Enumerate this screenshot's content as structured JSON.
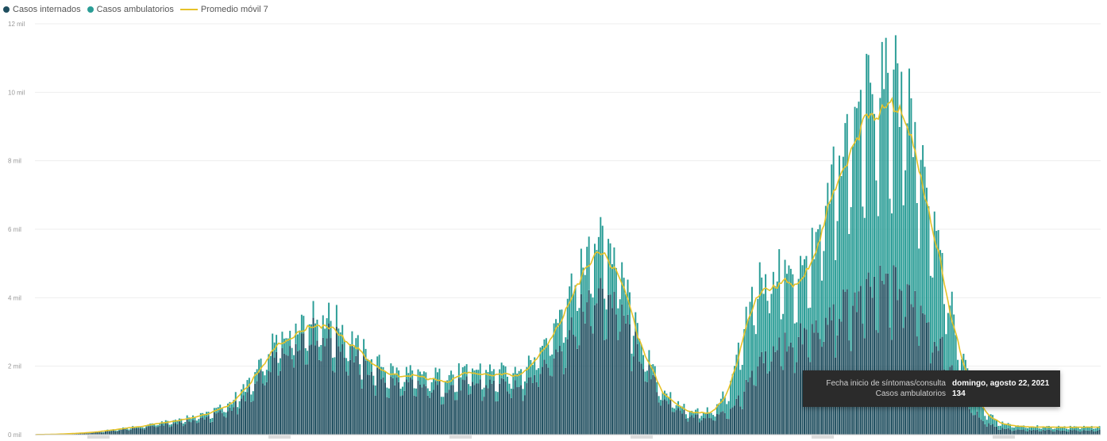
{
  "legend": {
    "items": [
      {
        "label": "Casos internados",
        "color": "#1f4e5f",
        "kind": "dot"
      },
      {
        "label": "Casos ambulatorios",
        "color": "#2a9d96",
        "kind": "dot"
      },
      {
        "label": "Promedio móvil 7",
        "color": "#e6c229",
        "kind": "line"
      }
    ]
  },
  "tooltip": {
    "row1_label": "Fecha inicio de síntomas/consulta",
    "row1_value": "domingo, agosto 22, 2021",
    "row2_label": "Casos ambulatorios",
    "row2_value": "134"
  },
  "chart_data": {
    "type": "bar",
    "stacked": true,
    "ylim": [
      0,
      12000
    ],
    "yticks": [
      0,
      2000,
      4000,
      6000,
      8000,
      10000,
      12000
    ],
    "ytick_labels": [
      "0 mil",
      "2 mil",
      "4 mil",
      "6 mil",
      "8 mil",
      "10 mil",
      "12 mil"
    ],
    "grid": true,
    "legend_position": "top-left",
    "x_start": "2020-03-01",
    "x_end": "2021-08-31",
    "x_ticks_shown": 6,
    "series": [
      {
        "name": "Casos internados",
        "color": "#1f4e5f",
        "weekly": [
          2,
          6,
          15,
          30,
          55,
          90,
          130,
          175,
          220,
          280,
          330,
          390,
          460,
          560,
          700,
          950,
          1350,
          1900,
          2400,
          2800,
          3000,
          3000,
          2800,
          2500,
          2100,
          1800,
          1600,
          1500,
          1450,
          1400,
          1400,
          1450,
          1500,
          1500,
          1450,
          1450,
          1600,
          1900,
          2300,
          2900,
          3500,
          4000,
          4200,
          3700,
          2800,
          1900,
          1200,
          800,
          600,
          520,
          550,
          700,
          1200,
          1900,
          2400,
          2700,
          2800,
          3000,
          3300,
          3600,
          3900,
          4100,
          4300,
          4400,
          4300,
          4000,
          3200,
          2200,
          1300,
          700,
          350,
          200,
          150,
          130
        ]
      },
      {
        "name": "Casos ambulatorios",
        "color": "#2a9d96",
        "weekly": [
          0,
          2,
          5,
          10,
          15,
          25,
          35,
          45,
          55,
          70,
          80,
          100,
          120,
          140,
          180,
          250,
          350,
          450,
          500,
          550,
          600,
          600,
          550,
          500,
          420,
          360,
          330,
          320,
          330,
          340,
          350,
          360,
          380,
          400,
          400,
          420,
          500,
          650,
          850,
          1100,
          1400,
          1600,
          1500,
          1100,
          700,
          400,
          250,
          180,
          160,
          150,
          200,
          700,
          1600,
          2300,
          2500,
          2200,
          2000,
          2300,
          3200,
          4400,
          5300,
          5600,
          5800,
          5900,
          5600,
          4800,
          3600,
          2300,
          1300,
          650,
          300,
          170,
          120,
          110
        ]
      }
    ],
    "moving_average": {
      "name": "Promedio móvil 7",
      "color": "#e6c229"
    }
  }
}
